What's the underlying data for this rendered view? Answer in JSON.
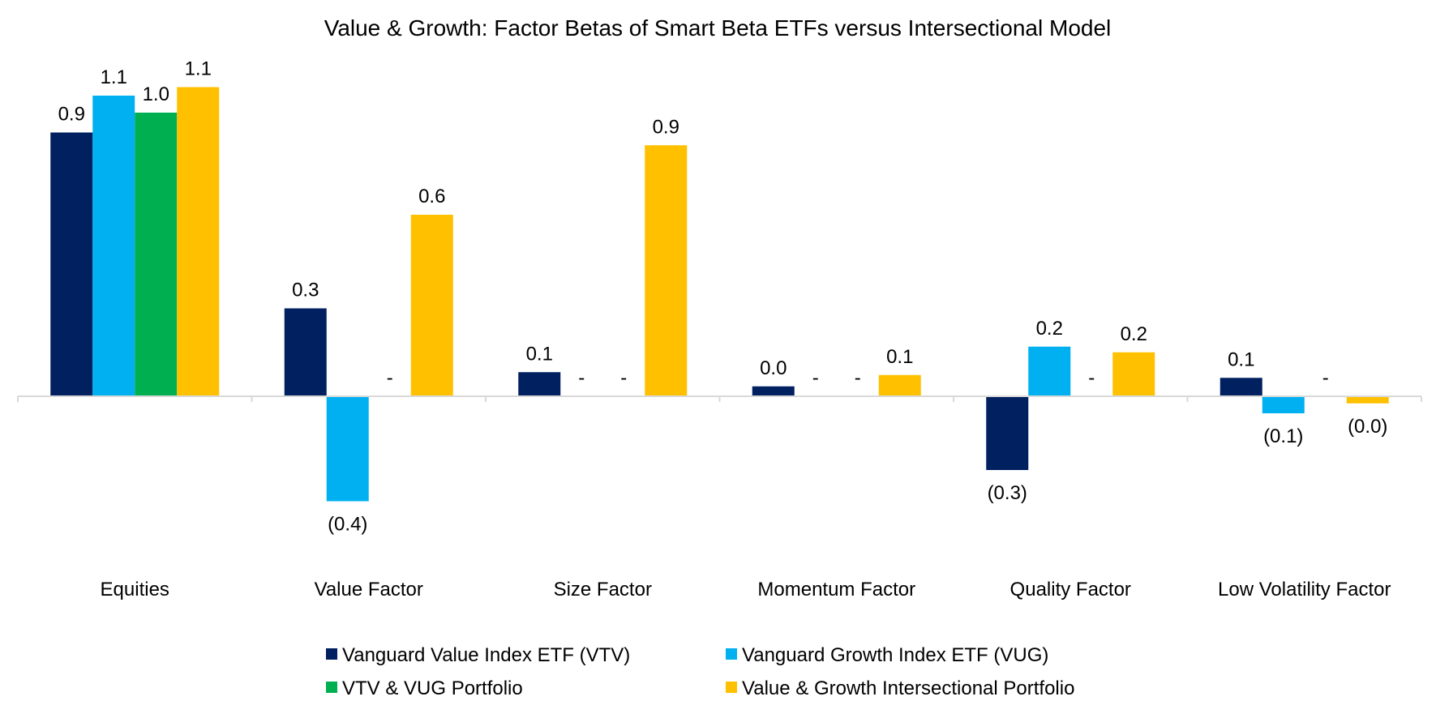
{
  "chart_data": {
    "type": "bar",
    "title": "Value & Growth: Factor Betas of Smart Beta ETFs versus Intersectional Model",
    "xlabel": "",
    "ylabel": "",
    "ylim": [
      -0.55,
      1.1
    ],
    "grid": false,
    "legend_position": "bottom",
    "categories": [
      "Equities",
      "Value Factor",
      "Size Factor",
      "Momentum Factor",
      "Quality Factor",
      "Low Volatility Factor"
    ],
    "series": [
      {
        "name": "Vanguard Value Index ETF (VTV)",
        "color": "#002060",
        "values": [
          0.93,
          0.31,
          0.085,
          0.035,
          -0.26,
          0.065
        ],
        "labels": [
          "0.9",
          "0.3",
          "0.1",
          "0.0",
          "(0.3)",
          "0.1"
        ]
      },
      {
        "name": "Vanguard Growth Index ETF (VUG)",
        "color": "#00B0F0",
        "values": [
          1.06,
          -0.37,
          0,
          0,
          0.175,
          -0.06
        ],
        "labels": [
          "1.1",
          "(0.4)",
          "-",
          "-",
          "0.2",
          "(0.1)"
        ]
      },
      {
        "name": "VTV & VUG Portfolio",
        "color": "#00B050",
        "values": [
          1.0,
          0,
          0,
          0,
          0,
          0
        ],
        "labels": [
          "1.0",
          "-",
          "-",
          "-",
          "-",
          "-"
        ]
      },
      {
        "name": "Value & Growth Intersectional Portfolio",
        "color": "#FFC000",
        "values": [
          1.09,
          0.64,
          0.885,
          0.075,
          0.155,
          -0.025
        ],
        "labels": [
          "1.1",
          "0.6",
          "0.9",
          "0.1",
          "0.2",
          "(0.0)"
        ]
      }
    ]
  }
}
